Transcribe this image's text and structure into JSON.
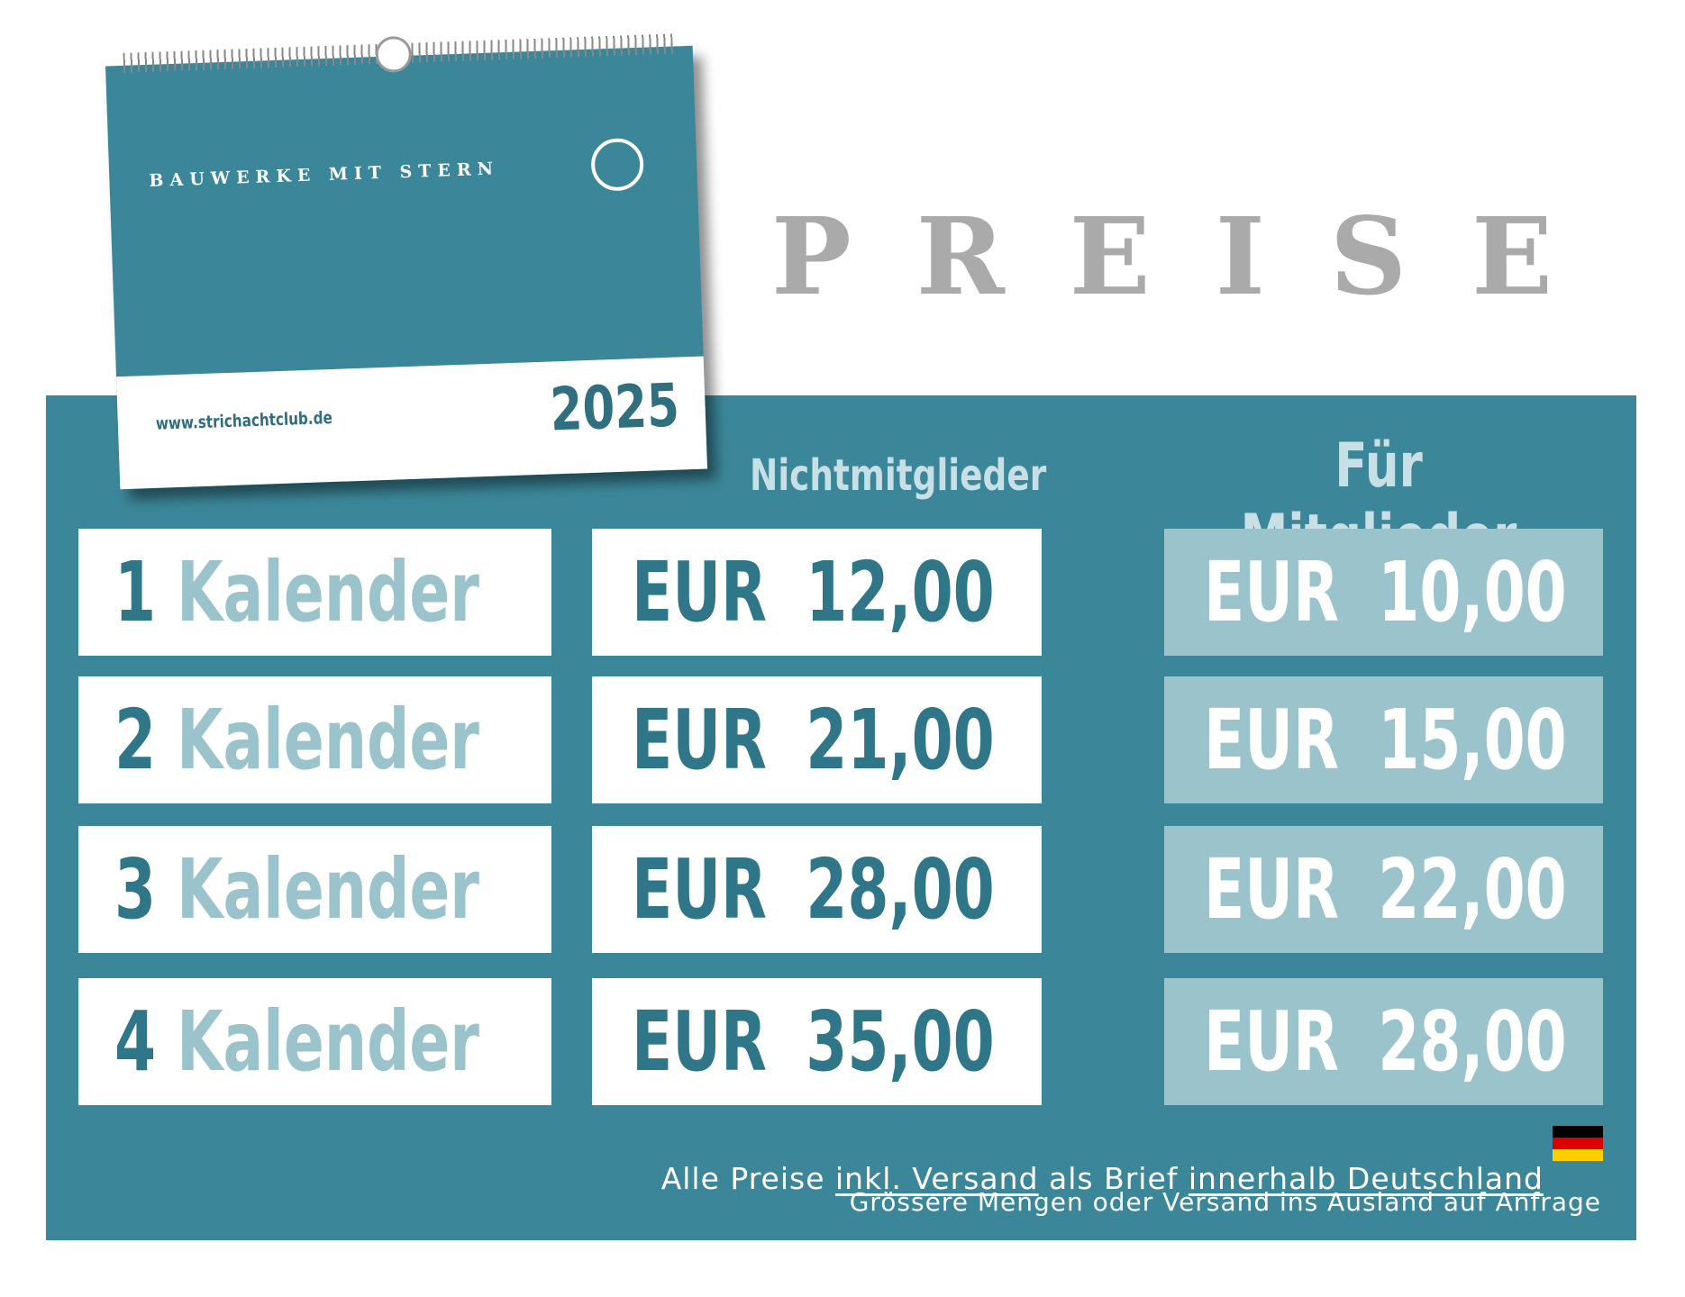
{
  "calendar": {
    "title": "BAUWERKE MIT STERN",
    "url": "www.strichachtclub.de",
    "year": "2025"
  },
  "heading": "PREISE",
  "columns": [
    "Nichtmitglieder",
    "Für Mitglieder"
  ],
  "rows": [
    {
      "count": "1",
      "item": "Kalender",
      "price": [
        "EUR",
        "12,00"
      ],
      "member_price": [
        "EUR",
        "10,00"
      ]
    },
    {
      "count": "2",
      "item": "Kalender",
      "price": [
        "EUR",
        "21,00"
      ],
      "member_price": [
        "EUR",
        "15,00"
      ]
    },
    {
      "count": "3",
      "item": "Kalender",
      "price": [
        "EUR",
        "28,00"
      ],
      "member_price": [
        "EUR",
        "22,00"
      ]
    },
    {
      "count": "4",
      "item": "Kalender",
      "price": [
        "EUR",
        "35,00"
      ],
      "member_price": [
        "EUR",
        "28,00"
      ]
    }
  ],
  "footer": {
    "line1": [
      "Alle Preise ",
      "inkl. Versand",
      " als Brief ",
      "innerhalb Deutschland"
    ],
    "line2": "Grössere Mengen oder Versand ins Ausland auf Anfrage"
  }
}
